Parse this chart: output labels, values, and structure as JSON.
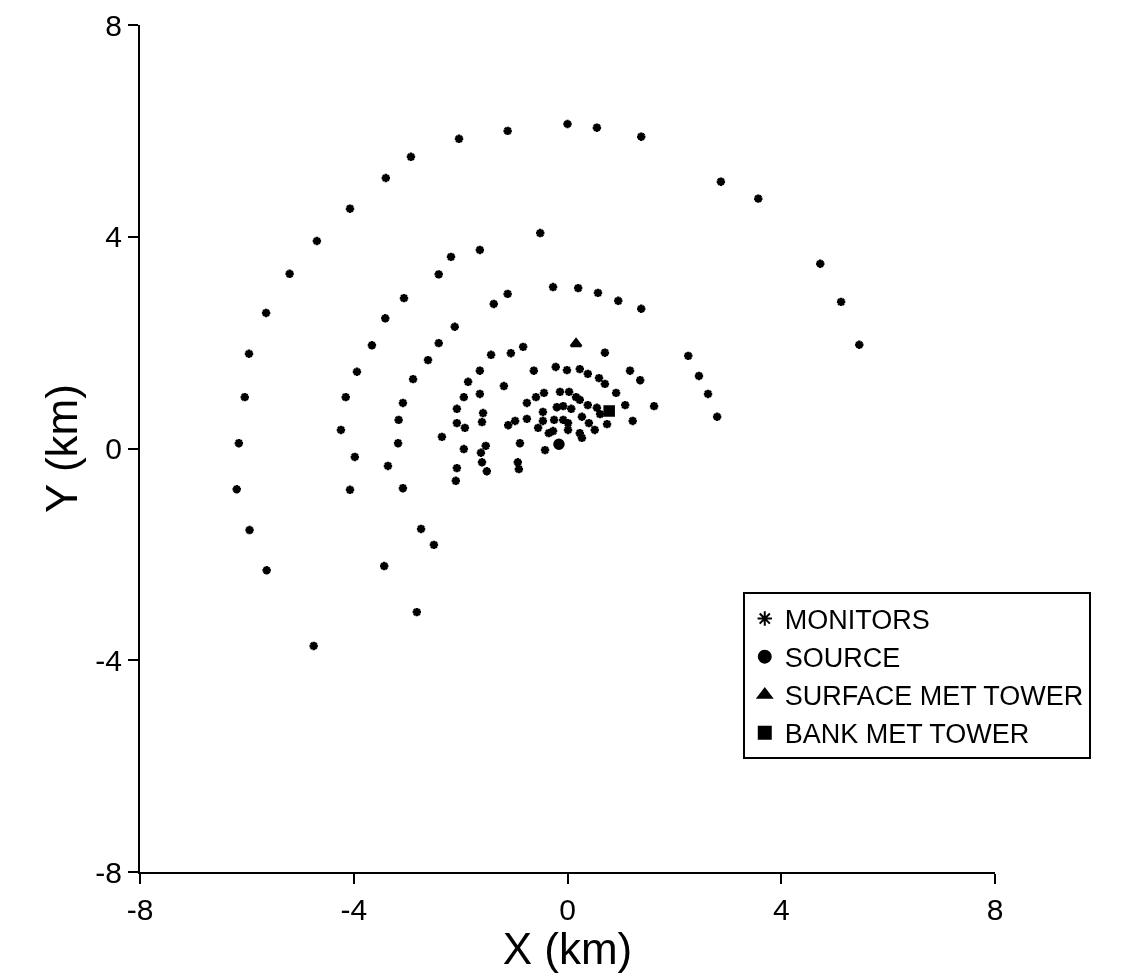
{
  "chart_data": {
    "type": "scatter",
    "xlabel": "X (km)",
    "ylabel": "Y (km)",
    "xlim": [
      -8,
      8
    ],
    "xticks": [
      -8,
      -4,
      0,
      4,
      8
    ],
    "ylim": [
      -8,
      8
    ],
    "yticks": [
      -8,
      -4,
      0,
      4,
      8
    ],
    "grid": false,
    "legend": "right",
    "series": [
      {
        "name": "MONITORS",
        "color": "#000000",
        "marker": "cross",
        "x": [
          0,
          0.55,
          1.38,
          -1.12,
          -2.03,
          -2.93,
          -3.4,
          -4.07,
          -4.69,
          -5.2,
          -5.64,
          -5.96,
          -6.04,
          -6.15,
          -6.19,
          -5.95,
          -5.63,
          -4.75,
          2.87,
          3.57,
          4.73,
          5.12,
          5.46,
          -0.51,
          -1.64,
          -2.18,
          -2.41,
          -3.06,
          -3.41,
          -3.66,
          -3.94,
          -4.15,
          -4.24,
          -3.98,
          -4.07,
          -3.43,
          -2.82,
          -1.38,
          -1.12,
          -0.27,
          0.2,
          0.57,
          0.95,
          1.38,
          -2.11,
          -2.41,
          -2.61,
          -2.89,
          -3.08,
          -3.16,
          -3.17,
          -3.36,
          -3.08,
          -2.74,
          -2.5,
          2.26,
          2.46,
          2.63,
          2.8,
          -0.83,
          -1.06,
          -1.43,
          -1.64,
          -1.86,
          -1.94,
          -2.07,
          -2.07,
          -1.92,
          -2.35,
          -1.94,
          -2.07,
          -2.09,
          0.7,
          1.17,
          1.36,
          1.62,
          1.22,
          1.08,
          0.91,
          -1.19,
          -1.64,
          -1.58,
          -1.6,
          -1.53,
          -1.62,
          -1.6,
          -1.51,
          -0.89,
          -0.93,
          -0.91,
          -0.63,
          -0.22,
          -0.01,
          0.23,
          0.38,
          0.59,
          0.7,
          -0.44,
          -0.59,
          -0.14,
          0.03,
          0.16,
          0.23,
          -0.76,
          -0.2,
          -0.08,
          0.07,
          0.38,
          0.55,
          -0.46,
          0.61,
          -0.76,
          -0.98,
          -1.11,
          -0.46,
          -0.25,
          -0.08,
          0.01,
          0.27,
          0.4,
          0.51,
          0.74,
          -0.55,
          -0.27,
          -0.35,
          0.01,
          0.23,
          0.27,
          -0.42
        ],
        "values": [
          6.13,
          6.06,
          5.89,
          6.0,
          5.85,
          5.51,
          5.11,
          4.53,
          3.92,
          3.3,
          2.56,
          1.79,
          0.97,
          0.1,
          -0.77,
          -1.54,
          -2.3,
          -3.73,
          5.04,
          4.72,
          3.49,
          2.77,
          1.96,
          4.07,
          3.75,
          3.62,
          3.29,
          2.84,
          2.46,
          1.95,
          1.45,
          0.97,
          0.35,
          -0.16,
          -0.78,
          -2.22,
          -3.09,
          2.73,
          2.92,
          3.05,
          3.03,
          2.94,
          2.79,
          2.64,
          2.3,
          1.99,
          1.67,
          1.31,
          0.86,
          0.54,
          0.1,
          -0.33,
          -0.75,
          -1.52,
          -1.82,
          1.75,
          1.37,
          1.03,
          0.6,
          1.92,
          1.8,
          1.77,
          1.47,
          1.26,
          0.97,
          0.75,
          0.48,
          0.39,
          0.22,
          -0.01,
          -0.37,
          -0.61,
          1.81,
          1.47,
          1.29,
          0.8,
          0.52,
          0.82,
          1.05,
          1.18,
          1.03,
          0.67,
          0.5,
          0.05,
          -0.08,
          -0.26,
          -0.43,
          0.1,
          -0.26,
          -0.39,
          1.47,
          1.54,
          1.48,
          1.5,
          1.41,
          1.33,
          1.22,
          1.05,
          0.97,
          1.07,
          1.07,
          0.97,
          0.92,
          0.86,
          0.78,
          0.8,
          0.75,
          0.82,
          0.77,
          0.69,
          0.65,
          0.56,
          0.52,
          0.44,
          0.52,
          0.54,
          0.54,
          0.48,
          0.6,
          0.48,
          0.35,
          0.46,
          0.39,
          0.33,
          0.29,
          0.35,
          0.29,
          0.2,
          -0.03
        ]
      },
      {
        "name": "SOURCE",
        "color": "#000000",
        "marker": "circle",
        "x": [
          -0.16
        ],
        "values": [
          0.08
        ]
      },
      {
        "name": "SURFACE MET TOWER",
        "color": "#000000",
        "marker": "triangle",
        "x": [
          0.16
        ],
        "values": [
          1.98
        ]
      },
      {
        "name": "BANK MET TOWER",
        "color": "#000000",
        "marker": "square",
        "x": [
          0.78
        ],
        "values": [
          0.71
        ]
      }
    ]
  }
}
